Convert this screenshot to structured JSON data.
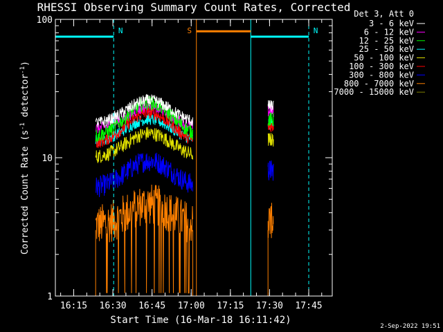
{
  "chart_data": {
    "type": "line",
    "title": "RHESSI Observing Summary Count Rates, Corrected",
    "xlabel": "Start Time (16-Mar-18 16:11:42)",
    "ylabel_main": "Corrected Count Rate (s",
    "ylabel_sup1": "-1",
    "ylabel_mid": " detector",
    "ylabel_sup2": "-1",
    "ylabel_end": ")",
    "yscale": "log",
    "ylim": [
      1,
      100
    ],
    "xlim": [
      16.133,
      17.9
    ],
    "x_ticks": [
      {
        "v": 16.25,
        "label": "16:15"
      },
      {
        "v": 16.5,
        "label": "16:30"
      },
      {
        "v": 16.75,
        "label": "16:45"
      },
      {
        "v": 17.0,
        "label": "17:00"
      },
      {
        "v": 17.25,
        "label": "17:15"
      },
      {
        "v": 17.5,
        "label": "17:30"
      },
      {
        "v": 17.75,
        "label": "17:45"
      }
    ],
    "y_ticks": [
      {
        "v": 1,
        "label": "1"
      },
      {
        "v": 10,
        "label": "10"
      },
      {
        "v": 100,
        "label": "100"
      }
    ],
    "legend_header": "Det 3, Att 0",
    "legend_position": "top-right outside",
    "series": [
      {
        "name": "3 - 6 keV",
        "color": "#ffffff",
        "base": 17.5,
        "peak": 26,
        "noise": 0.1
      },
      {
        "name": "6 - 12 keV",
        "color": "#ff00ff",
        "base": 16,
        "peak": 23,
        "noise": 0.1
      },
      {
        "name": "12 - 25 keV",
        "color": "#00ff00",
        "base": 14,
        "peak": 25,
        "noise": 0.12
      },
      {
        "name": "25 - 50 keV",
        "color": "#00ffff",
        "base": 13,
        "peak": 19,
        "noise": 0.1
      },
      {
        "name": "50 - 100 keV",
        "color": "#e0e000",
        "base": 10,
        "peak": 15,
        "noise": 0.12
      },
      {
        "name": "100 - 300 keV",
        "color": "#ff0000",
        "base": 12.5,
        "peak": 21,
        "noise": 0.1
      },
      {
        "name": "300 - 800 keV",
        "color": "#0000ff",
        "base": 6,
        "peak": 9.5,
        "noise": 0.18
      },
      {
        "name": "800 - 7000 keV",
        "color": "#ff8000",
        "base": 3.2,
        "peak": 4.6,
        "noise": 0.35
      },
      {
        "name": "7000 - 15000 keV",
        "color": "#808000",
        "base": 1.0,
        "peak": 1.0,
        "noise": 0
      }
    ],
    "data_intervals": [
      {
        "start": 16.39,
        "end": 17.01
      },
      {
        "start": 17.49,
        "end": 17.525
      }
    ],
    "flags": [
      {
        "label": "N",
        "color": "#00ffff",
        "start": 16.133,
        "end": 16.505,
        "level": 75
      },
      {
        "label": "N",
        "color": "#00ffff",
        "start": 17.38,
        "end": 17.75,
        "level": 75
      },
      {
        "label": "S",
        "color": "#ff8000",
        "start": 17.033,
        "end": 17.38,
        "level": 82
      }
    ],
    "grid": false
  },
  "timestamp": "2-Sep-2022 19:51"
}
